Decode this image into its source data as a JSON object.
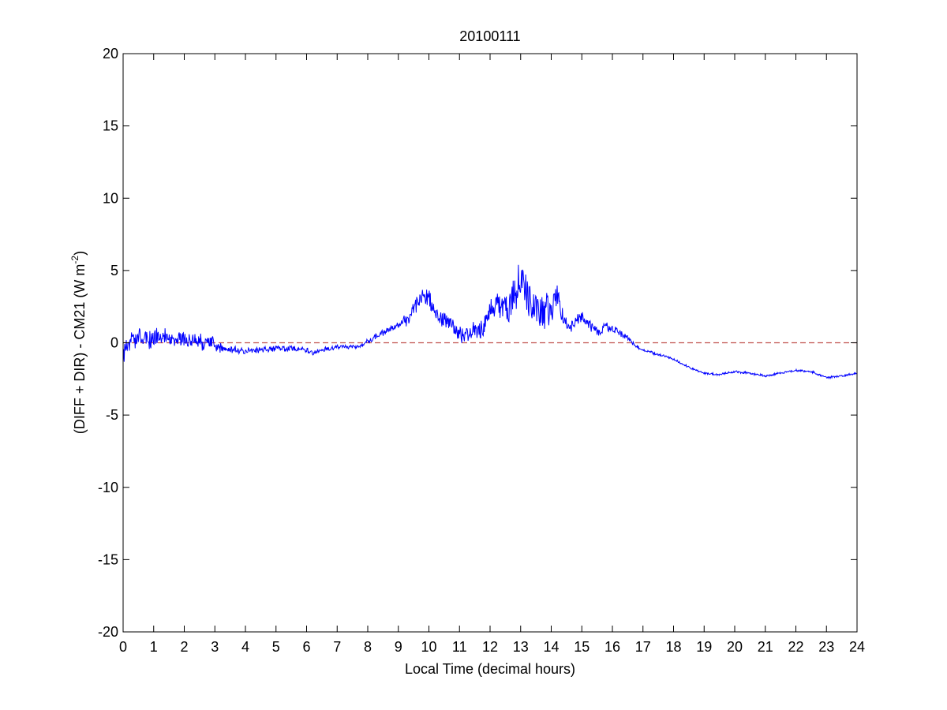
{
  "chart_data": {
    "type": "line",
    "title": "20100111",
    "xlabel": "Local Time (decimal hours)",
    "ylabel": {
      "prefix": "(DIFF + DIR) - CM21 (W m",
      "superscript": "-2",
      "suffix": ")"
    },
    "xlim": [
      0,
      24
    ],
    "ylim": [
      -20,
      20
    ],
    "x_ticks": [
      0,
      1,
      2,
      3,
      4,
      5,
      6,
      7,
      8,
      9,
      10,
      11,
      12,
      13,
      14,
      15,
      16,
      17,
      18,
      19,
      20,
      21,
      22,
      23,
      24
    ],
    "x_tick_labels": [
      "0",
      "1",
      "2",
      "3",
      "4",
      "5",
      "6",
      "7",
      "8",
      "9",
      "10",
      "11",
      "12",
      "13",
      "14",
      "15",
      "16",
      "17",
      "18",
      "19",
      "20",
      "21",
      "22",
      "23",
      "24"
    ],
    "y_ticks": [
      -20,
      -15,
      -10,
      -5,
      0,
      5,
      10,
      15,
      20
    ],
    "y_tick_labels": [
      "-20",
      "-15",
      "-10",
      "-5",
      "0",
      "5",
      "10",
      "15",
      "20"
    ],
    "grid": false,
    "series": [
      {
        "color": "#0000ff",
        "style": "solid",
        "noise": [
          [
            0,
            0.8
          ],
          [
            3,
            0.5
          ],
          [
            3.3,
            0.3
          ],
          [
            7.5,
            0.15
          ],
          [
            9,
            0.25
          ],
          [
            9.6,
            0.7
          ],
          [
            10.5,
            0.6
          ],
          [
            11.5,
            0.7
          ],
          [
            12.5,
            1.0
          ],
          [
            13,
            1.6
          ],
          [
            14,
            1.2
          ],
          [
            14.6,
            0.5
          ],
          [
            16.5,
            0.25
          ],
          [
            17,
            0.1
          ],
          [
            24,
            0.08
          ]
        ],
        "x": [
          0,
          0.3,
          0.7,
          1.0,
          1.5,
          2.0,
          2.5,
          3.0,
          3.3,
          3.6,
          4.0,
          4.5,
          5.0,
          5.5,
          6.0,
          6.2,
          6.5,
          7.0,
          7.5,
          7.8,
          8.0,
          8.5,
          9.0,
          9.3,
          9.6,
          9.8,
          10.0,
          10.2,
          10.4,
          10.6,
          10.8,
          11.0,
          11.2,
          11.4,
          11.6,
          11.8,
          12.0,
          12.3,
          12.6,
          12.8,
          13.0,
          13.2,
          13.4,
          13.6,
          13.8,
          14.0,
          14.2,
          14.4,
          14.6,
          14.8,
          15.0,
          15.3,
          15.6,
          15.8,
          16.0,
          16.3,
          16.5,
          16.8,
          17.0,
          17.5,
          18.0,
          18.5,
          19.0,
          19.5,
          20.0,
          20.5,
          21.0,
          21.5,
          22.0,
          22.5,
          23.0,
          23.5,
          24.0
        ],
        "y": [
          -0.5,
          0.1,
          0.2,
          0.3,
          0.3,
          0.3,
          0.1,
          -0.1,
          -0.5,
          -0.5,
          -0.6,
          -0.5,
          -0.4,
          -0.4,
          -0.5,
          -0.7,
          -0.5,
          -0.3,
          -0.3,
          -0.2,
          0.1,
          0.7,
          1.2,
          1.6,
          2.6,
          3.5,
          3.0,
          2.0,
          1.6,
          1.6,
          1.1,
          0.6,
          0.5,
          0.8,
          0.9,
          1.2,
          2.2,
          2.6,
          2.1,
          3.2,
          4.2,
          3.5,
          2.2,
          1.8,
          2.4,
          2.4,
          3.4,
          1.5,
          0.9,
          1.6,
          1.8,
          1.2,
          0.7,
          1.2,
          0.9,
          0.6,
          0.3,
          -0.3,
          -0.5,
          -0.8,
          -1.1,
          -1.7,
          -2.1,
          -2.2,
          -2.0,
          -2.1,
          -2.3,
          -2.1,
          -1.9,
          -2.0,
          -2.4,
          -2.3,
          -2.1
        ]
      },
      {
        "color": "#c0504d",
        "style": "dashed",
        "x": [
          0,
          24
        ],
        "y": [
          0,
          0
        ]
      }
    ]
  }
}
